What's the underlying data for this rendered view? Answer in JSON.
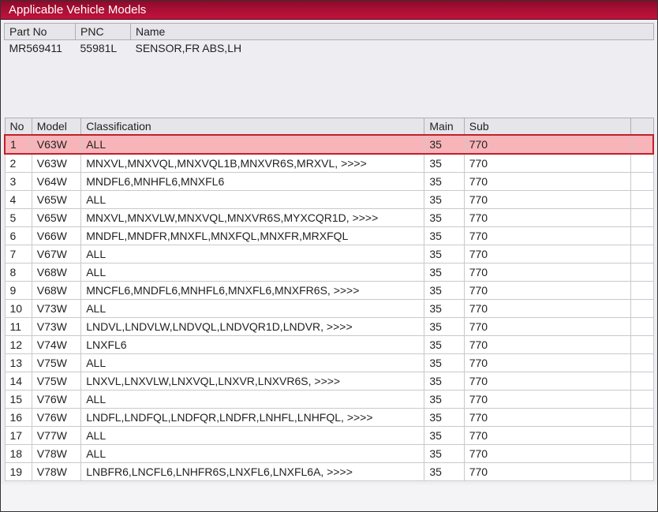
{
  "window": {
    "title": "Applicable Vehicle Models"
  },
  "part": {
    "headers": {
      "partNo": "Part No",
      "pnc": "PNC",
      "name": "Name"
    },
    "row": {
      "partNo": "MR569411",
      "pnc": "55981L",
      "name": "SENSOR,FR ABS,LH"
    }
  },
  "models": {
    "headers": {
      "no": "No",
      "model": "Model",
      "classification": "Classification",
      "main": "Main",
      "sub": "Sub"
    },
    "selectedIndex": 0,
    "rows": [
      {
        "no": "1",
        "model": "V63W",
        "classification": "ALL",
        "main": "35",
        "sub": "770"
      },
      {
        "no": "2",
        "model": "V63W",
        "classification": "MNXVL,MNXVQL,MNXVQL1B,MNXVR6S,MRXVL,  >>>>",
        "main": "35",
        "sub": "770"
      },
      {
        "no": "3",
        "model": "V64W",
        "classification": "MNDFL6,MNHFL6,MNXFL6",
        "main": "35",
        "sub": "770"
      },
      {
        "no": "4",
        "model": "V65W",
        "classification": "ALL",
        "main": "35",
        "sub": "770"
      },
      {
        "no": "5",
        "model": "V65W",
        "classification": "MNXVL,MNXVLW,MNXVQL,MNXVR6S,MYXCQR1D,  >>>>",
        "main": "35",
        "sub": "770"
      },
      {
        "no": "6",
        "model": "V66W",
        "classification": "MNDFL,MNDFR,MNXFL,MNXFQL,MNXFR,MRXFQL",
        "main": "35",
        "sub": "770"
      },
      {
        "no": "7",
        "model": "V67W",
        "classification": "ALL",
        "main": "35",
        "sub": "770"
      },
      {
        "no": "8",
        "model": "V68W",
        "classification": "ALL",
        "main": "35",
        "sub": "770"
      },
      {
        "no": "9",
        "model": "V68W",
        "classification": "MNCFL6,MNDFL6,MNHFL6,MNXFL6,MNXFR6S,  >>>>",
        "main": "35",
        "sub": "770"
      },
      {
        "no": "10",
        "model": "V73W",
        "classification": "ALL",
        "main": "35",
        "sub": "770"
      },
      {
        "no": "11",
        "model": "V73W",
        "classification": "LNDVL,LNDVLW,LNDVQL,LNDVQR1D,LNDVR,  >>>>",
        "main": "35",
        "sub": "770"
      },
      {
        "no": "12",
        "model": "V74W",
        "classification": "LNXFL6",
        "main": "35",
        "sub": "770"
      },
      {
        "no": "13",
        "model": "V75W",
        "classification": "ALL",
        "main": "35",
        "sub": "770"
      },
      {
        "no": "14",
        "model": "V75W",
        "classification": "LNXVL,LNXVLW,LNXVQL,LNXVR,LNXVR6S,  >>>>",
        "main": "35",
        "sub": "770"
      },
      {
        "no": "15",
        "model": "V76W",
        "classification": "ALL",
        "main": "35",
        "sub": "770"
      },
      {
        "no": "16",
        "model": "V76W",
        "classification": "LNDFL,LNDFQL,LNDFQR,LNDFR,LNHFL,LNHFQL,  >>>>",
        "main": "35",
        "sub": "770"
      },
      {
        "no": "17",
        "model": "V77W",
        "classification": "ALL",
        "main": "35",
        "sub": "770"
      },
      {
        "no": "18",
        "model": "V78W",
        "classification": "ALL",
        "main": "35",
        "sub": "770"
      },
      {
        "no": "19",
        "model": "V78W",
        "classification": "LNBFR6,LNCFL6,LNHFR6S,LNXFL6,LNXFL6A,  >>>>",
        "main": "35",
        "sub": "770"
      }
    ]
  },
  "style": {
    "titlebar_gradient": [
      "#8b0a2a",
      "#a80e34",
      "#c2123c"
    ],
    "titlebar_text": "#ffffff",
    "header_bg": "#e6e6ea",
    "header_border": "#adadb5",
    "row_bg": "#ffffff",
    "row_border": "#c9c9ce",
    "selected_bg": "#f7b5b9",
    "selected_border": "#c0202a",
    "body_bg": "#eeeef2",
    "text": "#222222",
    "fontsize_title": 15,
    "fontsize_cell": 14
  }
}
